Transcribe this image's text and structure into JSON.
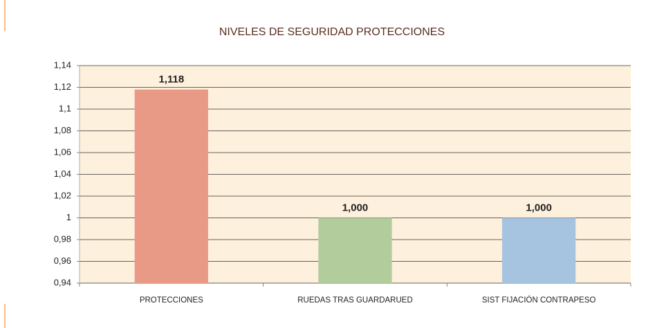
{
  "chart_data": {
    "type": "bar",
    "title": "NIVELES DE SEGURIDAD PROTECCIONES",
    "categories": [
      "PROTECCIONES",
      "RUEDAS TRAS GUARDARUED",
      "SIST FIJACIÓN CONTRAPESO"
    ],
    "values": [
      1.118,
      1.0,
      1.0
    ],
    "value_labels": [
      "1,118",
      "1,000",
      "1,000"
    ],
    "colors": [
      "#e99a87",
      "#b2cc9c",
      "#a6c4e0"
    ],
    "ylim": [
      0.94,
      1.14
    ],
    "yticks": [
      {
        "value": 0.94,
        "label": "0,94"
      },
      {
        "value": 0.96,
        "label": "0,96"
      },
      {
        "value": 0.98,
        "label": "0,98"
      },
      1,
      {
        "value": 1.02,
        "label": "1,02"
      },
      {
        "value": 1.04,
        "label": "1,04"
      },
      {
        "value": 1.06,
        "label": "1,06"
      },
      {
        "value": 1.08,
        "label": "1,08"
      },
      {
        "value": 1.1,
        "label": "1,1"
      },
      {
        "value": 1.12,
        "label": "1,12"
      },
      {
        "value": 1.14,
        "label": "1,14"
      }
    ],
    "grid": true
  }
}
